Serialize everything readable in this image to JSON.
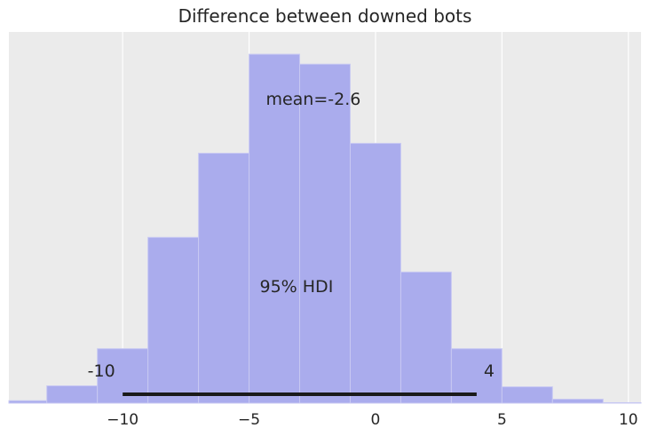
{
  "chart_data": {
    "type": "bar",
    "title": "Difference between downed bots",
    "xlabel": "",
    "ylabel": "",
    "xlim": [
      -14.5,
      10.5
    ],
    "x_ticks": [
      -10,
      -5,
      0,
      5,
      10
    ],
    "x_tick_labels": [
      "−10",
      "−5",
      "0",
      "5",
      "10"
    ],
    "grid": true,
    "y_axis_visible": false,
    "bin_edges": [
      -15,
      -13,
      -11,
      -9,
      -7,
      -5,
      -3,
      -1,
      1,
      3,
      5,
      7,
      9,
      11
    ],
    "values": [
      0.005,
      0.035,
      0.11,
      0.335,
      0.505,
      0.705,
      0.685,
      0.525,
      0.265,
      0.11,
      0.033,
      0.008,
      0.001
    ],
    "ylim": [
      0,
      0.75
    ],
    "hdi": {
      "low": -10,
      "high": 4,
      "label": "95% HDI",
      "low_label": "-10",
      "high_label": "4"
    },
    "mean": {
      "value": -2.6,
      "label": "mean=-2.6"
    },
    "colors": {
      "bars": "#aaaced",
      "bar_edge": "#c8c9f2",
      "background": "#ebebeb",
      "grid": "#ffffff",
      "hdi_line": "#1a1a1a"
    }
  }
}
